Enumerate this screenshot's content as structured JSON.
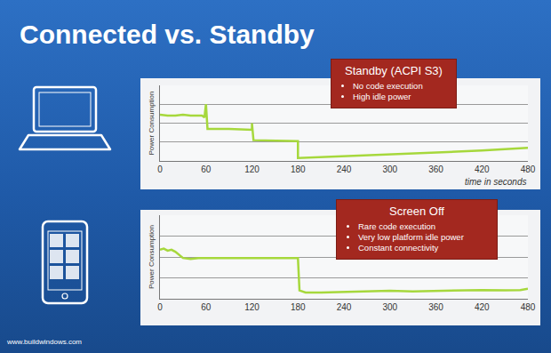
{
  "title": "Connected vs. Standby",
  "footer": "www.buildwindows.com",
  "chart_data": [
    {
      "type": "line",
      "y_label": "Power Consumption",
      "x_label": "time in seconds",
      "x": [
        0,
        10,
        20,
        30,
        40,
        55,
        58,
        60,
        62,
        90,
        120,
        120,
        122,
        150,
        180,
        180,
        240,
        300,
        360,
        420,
        480
      ],
      "values": [
        2.45,
        2.4,
        2.4,
        2.45,
        2.4,
        2.4,
        2.3,
        3.0,
        1.7,
        1.7,
        1.65,
        2.0,
        1.1,
        1.08,
        1.05,
        0.15,
        0.25,
        0.35,
        0.45,
        0.55,
        0.7
      ],
      "color": "#a6d83c",
      "xlim": [
        0,
        480
      ],
      "xticks": [
        0,
        60,
        120,
        180,
        240,
        300,
        360,
        420,
        480
      ],
      "ylim": [
        0,
        4
      ],
      "yticks": [
        0,
        1,
        2,
        3,
        4
      ],
      "grid": true,
      "tick_labels": "x",
      "annotations": [
        {
          "title": "Standby (ACPI S3)",
          "items": [
            "No code execution",
            "High idle power"
          ]
        }
      ]
    },
    {
      "type": "line",
      "y_label": "Power Consumption",
      "x": [
        0,
        5,
        10,
        15,
        20,
        25,
        30,
        40,
        50,
        60,
        80,
        100,
        120,
        140,
        160,
        175,
        180,
        182,
        190,
        210,
        240,
        270,
        300,
        330,
        360,
        390,
        420,
        450,
        470,
        480
      ],
      "values": [
        2.35,
        2.4,
        2.3,
        2.35,
        2.25,
        2.1,
        1.95,
        1.9,
        1.95,
        1.95,
        1.95,
        1.95,
        1.95,
        1.95,
        1.95,
        1.95,
        1.95,
        0.4,
        0.3,
        0.3,
        0.32,
        0.35,
        0.38,
        0.35,
        0.38,
        0.38,
        0.42,
        0.4,
        0.42,
        0.48
      ],
      "color": "#a6d83c",
      "xlim": [
        0,
        480
      ],
      "xticks": [
        0,
        60,
        120,
        180,
        240,
        300,
        360,
        420,
        480
      ],
      "ylim": [
        0,
        4
      ],
      "yticks": [
        0,
        1,
        2,
        3,
        4
      ],
      "grid": true,
      "tick_labels": "x",
      "annotations": [
        {
          "title": "Screen Off",
          "items": [
            "Rare code execution",
            "Very low platform idle power",
            "Constant connectivity"
          ]
        }
      ]
    }
  ]
}
